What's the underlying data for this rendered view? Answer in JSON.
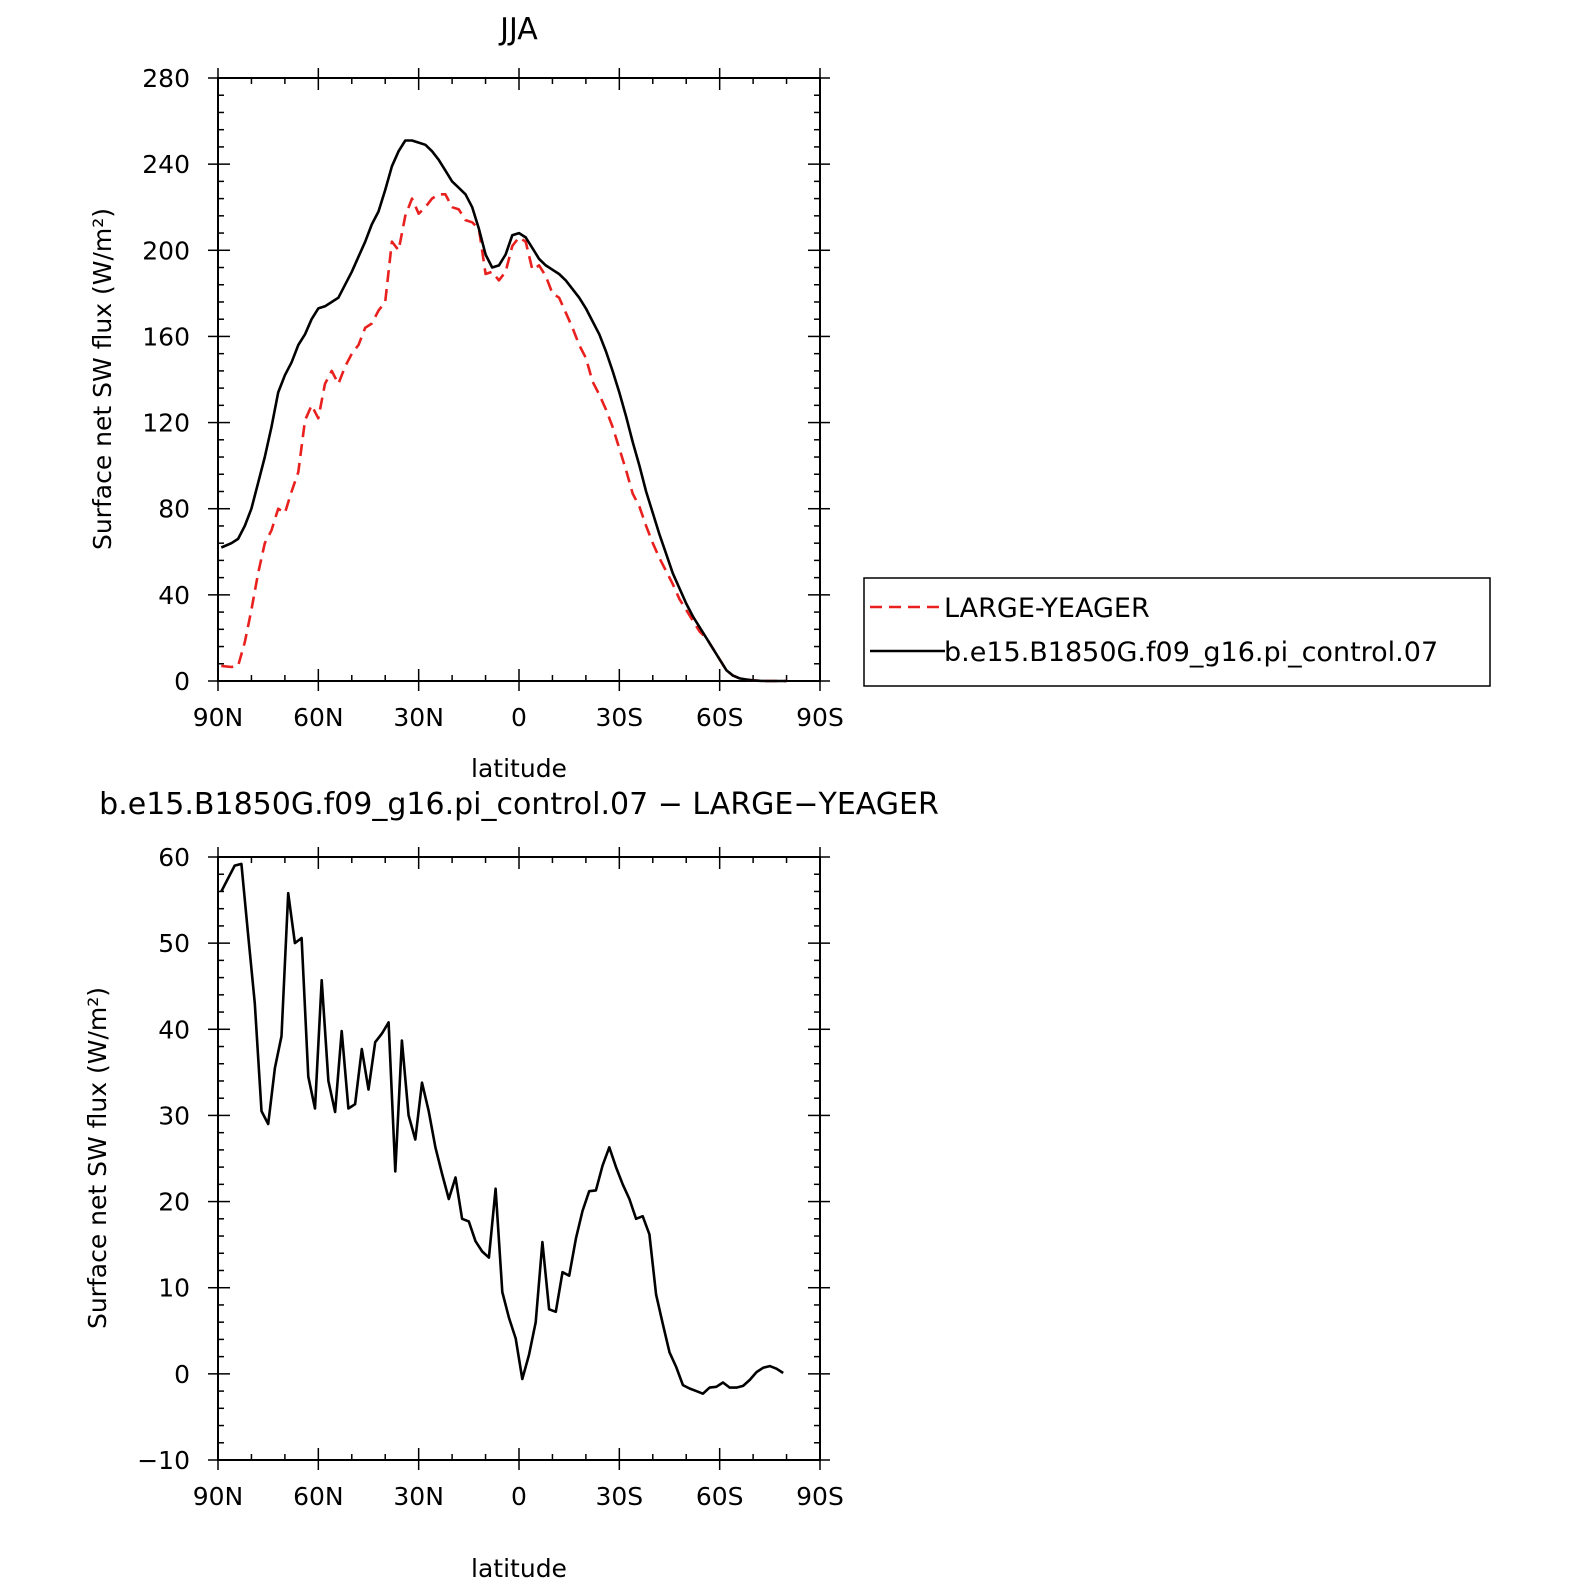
{
  "chart_data": [
    {
      "type": "line",
      "title": "JJA",
      "xlabel": "latitude",
      "ylabel": "Surface net SW flux (W/m²)",
      "xticks": [
        {
          "value": 90,
          "label": "90N"
        },
        {
          "value": 60,
          "label": "60N"
        },
        {
          "value": 30,
          "label": "30N"
        },
        {
          "value": 0,
          "label": "0"
        },
        {
          "value": -30,
          "label": "30S"
        },
        {
          "value": -60,
          "label": "60S"
        },
        {
          "value": -90,
          "label": "90S"
        }
      ],
      "xlim": [
        90,
        -90
      ],
      "ylim": [
        0,
        280
      ],
      "yticks": [
        0,
        40,
        80,
        120,
        160,
        200,
        240,
        280
      ],
      "legend_position": "right",
      "series": [
        {
          "name": "LARGE-YEAGER",
          "color": "#e8201e",
          "dash": "dashed",
          "x": [
            89,
            86,
            84,
            82,
            80,
            78,
            76,
            74,
            72,
            70,
            68,
            66,
            64,
            62,
            60,
            58,
            56,
            54,
            52,
            50,
            48,
            46,
            44,
            42,
            40,
            38,
            36,
            34,
            32,
            30,
            28,
            26,
            24,
            22,
            20,
            18,
            16,
            14,
            12,
            10,
            8,
            6,
            4,
            2,
            0,
            -2,
            -4,
            -6,
            -8,
            -10,
            -12,
            -14,
            -16,
            -18,
            -20,
            -22,
            -24,
            -26,
            -28,
            -30,
            -32,
            -34,
            -36,
            -38,
            -40,
            -42,
            -44,
            -46,
            -48,
            -50,
            -52,
            -54,
            -56,
            -58,
            -60,
            -62,
            -64,
            -66,
            -68,
            -70,
            -72,
            -74,
            -76,
            -78,
            -80
          ],
          "y": [
            7,
            6.5,
            7,
            18,
            33,
            50,
            64,
            70,
            80,
            78,
            88,
            97,
            121,
            128,
            122,
            138,
            144,
            138,
            146,
            152,
            156,
            164,
            166,
            172,
            176,
            204,
            200,
            216,
            224,
            217,
            220,
            224,
            226,
            226,
            220,
            219,
            214,
            213,
            210,
            189,
            190,
            186,
            190,
            202,
            206,
            204,
            191,
            193,
            188,
            180,
            178,
            171,
            164,
            156,
            150,
            139,
            133,
            126,
            118,
            108,
            98,
            87,
            81,
            72,
            64,
            57,
            51,
            45,
            38,
            33,
            28,
            23,
            20,
            15,
            10,
            5,
            2.5,
            1.2,
            0.7,
            0.3,
            0.1,
            0,
            0,
            0,
            0
          ]
        },
        {
          "name": "b.e15.B1850G.f09_g16.pi_control.07",
          "color": "#000000",
          "dash": "solid",
          "x": [
            89,
            86,
            84,
            82,
            80,
            78,
            76,
            74,
            72,
            70,
            68,
            66,
            64,
            62,
            60,
            58,
            56,
            54,
            52,
            50,
            48,
            46,
            44,
            42,
            40,
            38,
            36,
            34,
            32,
            30,
            28,
            26,
            24,
            22,
            20,
            18,
            16,
            14,
            12,
            10,
            8,
            6,
            4,
            2,
            0,
            -2,
            -4,
            -6,
            -8,
            -10,
            -12,
            -14,
            -16,
            -18,
            -20,
            -22,
            -24,
            -26,
            -28,
            -30,
            -32,
            -34,
            -36,
            -38,
            -40,
            -42,
            -44,
            -46,
            -48,
            -50,
            -52,
            -54,
            -56,
            -58,
            -60,
            -62,
            -64,
            -66,
            -68,
            -70,
            -72,
            -74,
            -76,
            -78,
            -80
          ],
          "y": [
            62,
            64,
            66,
            72,
            80,
            92,
            104,
            118,
            134,
            142,
            148,
            156,
            161,
            168,
            173,
            174,
            176,
            178,
            184,
            190,
            197,
            204,
            212,
            218,
            228,
            239,
            246,
            251,
            251,
            250,
            249,
            246,
            242,
            237,
            232,
            229,
            226,
            220,
            210,
            198,
            192,
            193,
            198,
            207,
            208,
            206,
            201,
            196,
            193,
            191,
            189,
            186,
            182,
            178,
            173,
            167,
            161,
            153,
            144,
            134,
            123,
            111,
            100,
            88,
            78,
            68,
            59,
            50,
            43,
            36,
            30,
            25,
            20,
            15,
            10,
            5,
            2.5,
            1.2,
            0.7,
            0.3,
            0.1,
            0,
            0,
            0,
            0
          ]
        }
      ]
    },
    {
      "type": "line",
      "title": "b.e15.B1850G.f09_g16.pi_control.07 − LARGE−YEAGER",
      "xlabel": "latitude",
      "ylabel": "Surface net SW flux (W/m²)",
      "xticks": [
        {
          "value": 90,
          "label": "90N"
        },
        {
          "value": 60,
          "label": "60N"
        },
        {
          "value": 30,
          "label": "30N"
        },
        {
          "value": 0,
          "label": "0"
        },
        {
          "value": -30,
          "label": "30S"
        },
        {
          "value": -60,
          "label": "60S"
        },
        {
          "value": -90,
          "label": "90S"
        }
      ],
      "xlim": [
        90,
        -90
      ],
      "ylim": [
        -10,
        60
      ],
      "yticks": [
        -10,
        0,
        10,
        20,
        30,
        40,
        50,
        60
      ],
      "series": [
        {
          "color": "#000000",
          "dash": "solid",
          "x": [
            89,
            87,
            85,
            83,
            81,
            79,
            77,
            75,
            73,
            71,
            69,
            67,
            65,
            63,
            61,
            59,
            57,
            55,
            53,
            51,
            49,
            47,
            45,
            43,
            41,
            39,
            37,
            35,
            33,
            31,
            29,
            27,
            25,
            23,
            21,
            19,
            17,
            15,
            13,
            11,
            9,
            7,
            5,
            3,
            1,
            -1,
            -3,
            -5,
            -7,
            -9,
            -11,
            -13,
            -15,
            -17,
            -19,
            -21,
            -23,
            -25,
            -27,
            -29,
            -31,
            -33,
            -35,
            -37,
            -39,
            -41,
            -43,
            -45,
            -47,
            -49,
            -51,
            -53,
            -55,
            -57,
            -59,
            -61,
            -63,
            -65,
            -67,
            -69,
            -71,
            -73,
            -75,
            -77,
            -79
          ],
          "y": [
            56,
            57.5,
            59,
            59.2,
            51,
            43,
            30.5,
            29,
            35.5,
            39.2,
            55.8,
            50,
            50.6,
            34.5,
            30.8,
            45.7,
            34,
            30.4,
            39.8,
            30.8,
            31.3,
            37.7,
            33,
            38.5,
            39.5,
            40.8,
            23.5,
            38.7,
            30,
            27.2,
            33.8,
            30.5,
            26.3,
            23.2,
            20.3,
            22.8,
            18,
            17.7,
            15.4,
            14.2,
            13.5,
            21.5,
            9.5,
            6.5,
            4.1,
            -0.6,
            2.2,
            6,
            15.3,
            7.5,
            7.2,
            11.8,
            11.4,
            15.7,
            18.9,
            21.2,
            21.3,
            24.2,
            26.3,
            24,
            22,
            20.3,
            18,
            18.3,
            16.2,
            9.2,
            5.8,
            2.5,
            0.8,
            -1.3,
            -1.7,
            -2,
            -2.3,
            -1.6,
            -1.5,
            -1,
            -1.6,
            -1.6,
            -1.4,
            -0.7,
            0.2,
            0.7,
            0.9,
            0.6,
            0.1
          ]
        }
      ]
    }
  ]
}
